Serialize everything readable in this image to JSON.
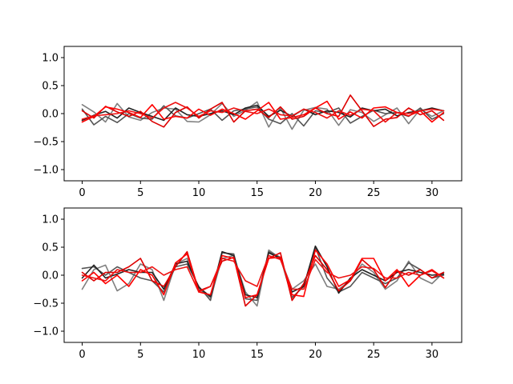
{
  "chart_data": [
    {
      "type": "line",
      "title": "",
      "xlabel": "",
      "ylabel": "",
      "xlim": [
        -1.55,
        32.55
      ],
      "ylim": [
        -1.2,
        1.2
      ],
      "xticks": [
        0,
        5,
        10,
        15,
        20,
        25,
        30
      ],
      "yticks": [
        -1.0,
        -0.5,
        0.0,
        0.5,
        1.0
      ],
      "ytick_labels": [
        "−1.0",
        "−0.5",
        "0.0",
        "0.5",
        "1.0"
      ],
      "x": [
        0,
        1,
        2,
        3,
        4,
        5,
        6,
        7,
        8,
        9,
        10,
        11,
        12,
        13,
        14,
        15,
        16,
        17,
        18,
        19,
        20,
        21,
        22,
        23,
        24,
        25,
        26,
        27,
        28,
        29,
        30,
        31
      ],
      "series": [
        {
          "color": "#7f7f7f",
          "values": [
            0.16,
            0.03,
            -0.15,
            0.18,
            -0.06,
            -0.12,
            0.02,
            0.1,
            0.08,
            -0.14,
            -0.15,
            -0.02,
            0.18,
            -0.05,
            0.06,
            0.21,
            -0.24,
            0.1,
            -0.28,
            0.06,
            0.11,
            0.08,
            -0.21,
            0.07,
            0.02,
            -0.14,
            -0.02,
            0.1,
            -0.18,
            0.08,
            -0.05,
            0.05
          ]
        },
        {
          "color": "#555555",
          "values": [
            0.08,
            -0.2,
            -0.05,
            -0.16,
            0.0,
            -0.08,
            -0.1,
            0.14,
            -0.04,
            -0.08,
            0.0,
            0.08,
            -0.12,
            0.05,
            0.08,
            0.12,
            -0.1,
            -0.18,
            0.0,
            -0.22,
            0.05,
            0.02,
            0.1,
            -0.17,
            -0.05,
            0.06,
            0.0,
            0.02,
            -0.05,
            0.1,
            -0.1,
            0.0
          ]
        },
        {
          "color": "#222222",
          "values": [
            -0.12,
            -0.03,
            0.04,
            -0.08,
            0.1,
            0.02,
            -0.05,
            -0.12,
            0.1,
            -0.02,
            -0.05,
            0.0,
            0.05,
            -0.02,
            0.1,
            0.15,
            -0.05,
            0.06,
            -0.05,
            0.08,
            -0.02,
            0.05,
            0.02,
            -0.06,
            0.1,
            0.05,
            0.08,
            -0.04,
            0.02,
            0.05,
            0.1,
            0.05
          ]
        },
        {
          "color": "#dd0000",
          "values": [
            0.05,
            -0.08,
            0.13,
            0.03,
            -0.05,
            0.04,
            -0.14,
            -0.24,
            0.02,
            0.12,
            -0.08,
            0.08,
            0.2,
            -0.15,
            0.05,
            0.08,
            -0.07,
            0.12,
            -0.1,
            -0.05,
            0.1,
            0.0,
            -0.05,
            0.33,
            0.05,
            -0.23,
            -0.1,
            -0.07,
            0.1,
            -0.02,
            0.05,
            -0.12
          ]
        },
        {
          "color": "#ff0000",
          "values": [
            -0.15,
            -0.05,
            0.12,
            0.08,
            0.02,
            -0.07,
            0.16,
            -0.1,
            -0.05,
            -0.08,
            0.08,
            -0.03,
            0.08,
            0.0,
            -0.1,
            0.05,
            0.2,
            -0.1,
            -0.07,
            -0.02,
            0.1,
            0.22,
            -0.1,
            0.03,
            -0.08,
            0.1,
            0.12,
            0.02,
            -0.04,
            0.05,
            -0.15,
            0.02
          ]
        },
        {
          "color": "#ee1111",
          "values": [
            -0.1,
            -0.04,
            -0.02,
            0.0,
            0.05,
            0.0,
            -0.08,
            0.1,
            0.2,
            0.1,
            -0.05,
            0.05,
            0.02,
            0.1,
            0.04,
            0.0,
            0.08,
            -0.02,
            -0.04,
            0.08,
            0.02,
            -0.08,
            0.05,
            -0.03,
            0.08,
            0.05,
            -0.15,
            0.02,
            0.0,
            0.05,
            0.08,
            0.05
          ]
        }
      ]
    },
    {
      "type": "line",
      "title": "",
      "xlabel": "",
      "ylabel": "",
      "xlim": [
        -1.55,
        32.55
      ],
      "ylim": [
        -1.2,
        1.2
      ],
      "xticks": [
        0,
        5,
        10,
        15,
        20,
        25,
        30
      ],
      "yticks": [
        -1.0,
        -0.5,
        0.0,
        0.5,
        1.0
      ],
      "ytick_labels": [
        "−1.0",
        "−0.5",
        "0.0",
        "0.5",
        "1.0"
      ],
      "x": [
        0,
        1,
        2,
        3,
        4,
        5,
        6,
        7,
        8,
        9,
        10,
        11,
        12,
        13,
        14,
        15,
        16,
        17,
        18,
        19,
        20,
        21,
        22,
        23,
        24,
        25,
        26,
        27,
        28,
        29,
        30,
        31
      ],
      "series": [
        {
          "color": "#7f7f7f",
          "values": [
            -0.25,
            0.1,
            0.18,
            -0.28,
            -0.15,
            0.2,
            0.1,
            -0.45,
            0.2,
            0.3,
            -0.25,
            -0.4,
            0.3,
            0.35,
            -0.3,
            -0.55,
            0.45,
            0.3,
            -0.25,
            -0.1,
            0.2,
            -0.2,
            -0.25,
            -0.1,
            0.2,
            0.05,
            -0.25,
            -0.1,
            0.25,
            -0.05,
            -0.15,
            0.05
          ]
        },
        {
          "color": "#555555",
          "values": [
            0.12,
            0.15,
            0.0,
            0.15,
            0.05,
            -0.05,
            -0.1,
            -0.3,
            0.15,
            0.2,
            -0.2,
            -0.45,
            0.4,
            0.38,
            -0.42,
            -0.45,
            0.42,
            0.32,
            -0.4,
            -0.2,
            0.5,
            -0.05,
            -0.3,
            -0.2,
            0.05,
            -0.05,
            -0.15,
            -0.05,
            0.22,
            0.1,
            -0.05,
            0.0
          ]
        },
        {
          "color": "#222222",
          "values": [
            -0.05,
            0.18,
            -0.05,
            0.02,
            0.1,
            0.05,
            0.05,
            -0.25,
            0.2,
            0.25,
            -0.22,
            -0.38,
            0.42,
            0.35,
            -0.35,
            -0.4,
            0.4,
            0.3,
            -0.3,
            -0.2,
            0.52,
            0.15,
            -0.32,
            -0.05,
            0.1,
            0.0,
            -0.1,
            0.05,
            0.1,
            0.05,
            0.0,
            0.02
          ]
        },
        {
          "color": "#dd0000",
          "values": [
            0.05,
            -0.1,
            0.05,
            0.05,
            0.15,
            0.3,
            -0.1,
            -0.2,
            0.15,
            0.42,
            -0.28,
            -0.2,
            0.25,
            0.32,
            -0.55,
            -0.35,
            0.3,
            0.4,
            -0.45,
            -0.15,
            0.35,
            0.1,
            -0.28,
            -0.1,
            0.28,
            0.1,
            -0.22,
            0.08,
            0.0,
            0.1,
            -0.05,
            0.05
          ]
        },
        {
          "color": "#ff0000",
          "values": [
            -0.1,
            0.05,
            -0.15,
            0.0,
            -0.2,
            0.1,
            0.0,
            -0.35,
            0.22,
            0.38,
            -0.3,
            -0.35,
            0.35,
            0.3,
            -0.4,
            -0.35,
            0.3,
            0.32,
            -0.35,
            -0.38,
            0.45,
            0.2,
            -0.2,
            -0.08,
            0.3,
            0.3,
            -0.1,
            0.1,
            -0.2,
            0.0,
            0.1,
            -0.05
          ]
        },
        {
          "color": "#ee1111",
          "values": [
            0.0,
            -0.05,
            -0.1,
            0.1,
            0.05,
            0.05,
            0.15,
            0.0,
            0.1,
            0.15,
            -0.3,
            -0.2,
            0.3,
            0.25,
            -0.1,
            -0.2,
            0.35,
            0.28,
            -0.25,
            -0.25,
            0.28,
            0.05,
            -0.05,
            0.0,
            0.15,
            0.12,
            -0.05,
            -0.05,
            0.05,
            0.0,
            0.08,
            -0.05
          ]
        }
      ]
    }
  ]
}
